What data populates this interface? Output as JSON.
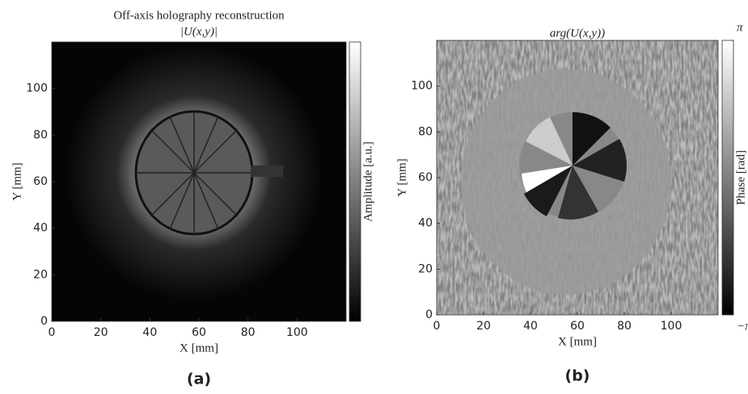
{
  "chart_data": [
    {
      "type": "image",
      "title": "Off-axis holography reconstruction",
      "subtitle": "|U(x,y)|",
      "xlabel": "X [mm]",
      "ylabel": "Y [mm]",
      "colorbar_label": "Amplitude [a.u.]",
      "caption": "(a)",
      "xlim": [
        0,
        120
      ],
      "ylim": [
        0,
        120
      ],
      "xticks": [
        0,
        20,
        40,
        60,
        80,
        100
      ],
      "yticks": [
        0,
        20,
        40,
        60,
        80,
        100
      ],
      "colormap": "gray"
    },
    {
      "type": "image",
      "title": "arg(U(x,y))",
      "xlabel": "X [mm]",
      "ylabel": "Y [mm]",
      "colorbar_label": "Phase [rad]",
      "caption": "(b)",
      "xlim": [
        0,
        120
      ],
      "ylim": [
        0,
        120
      ],
      "xticks": [
        0,
        20,
        40,
        60,
        80,
        100
      ],
      "yticks": [
        0,
        20,
        40,
        60,
        80,
        100
      ],
      "colormap": "gray",
      "clim": [
        -3.14159,
        3.14159
      ],
      "cticks": [
        {
          "value": -3.14159,
          "label": "−π"
        },
        {
          "value": 3.14159,
          "label": "π"
        }
      ]
    }
  ]
}
